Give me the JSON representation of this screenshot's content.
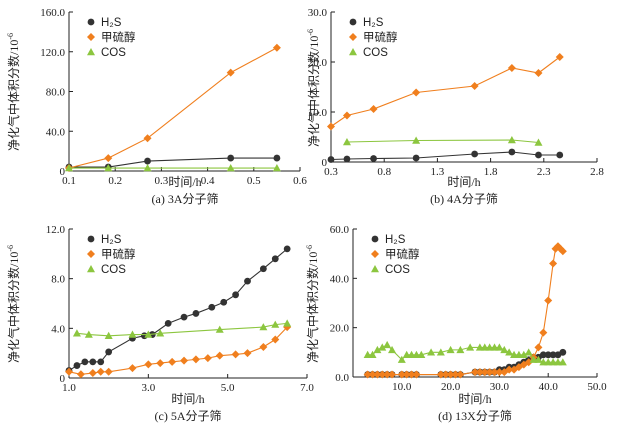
{
  "colors": {
    "h2s": "#333333",
    "mercaptan": "#f07f1e",
    "cos": "#8cc63f",
    "axis": "#222222"
  },
  "chart_data": [
    {
      "type": "line",
      "caption": "(a) 3A分子筛",
      "xlabel": "时间/h",
      "ylabel": "净化气中体积分数/10",
      "ylabel_exp": "-6",
      "xlim": [
        0.1,
        0.6
      ],
      "ylim": [
        0,
        160
      ],
      "xticks": [
        "0.1",
        "0.2",
        "0.3",
        "0.4",
        "0.5",
        "0.6"
      ],
      "yticks": [
        "0",
        "40.0",
        "80.0",
        "120.0",
        "160.0"
      ],
      "legend_position": "top-left",
      "series": [
        {
          "name": "H₂S",
          "marker": "circle",
          "x": [
            0.1,
            0.185,
            0.27,
            0.45,
            0.55
          ],
          "y": [
            4,
            4,
            10,
            13,
            13
          ]
        },
        {
          "name": "甲硫醇",
          "marker": "diamond",
          "x": [
            0.1,
            0.185,
            0.27,
            0.45,
            0.55
          ],
          "y": [
            3,
            13,
            33,
            99,
            124
          ]
        },
        {
          "name": "COS",
          "marker": "triangle",
          "x": [
            0.1,
            0.185,
            0.27,
            0.45,
            0.55
          ],
          "y": [
            3,
            3,
            3,
            3,
            3
          ]
        }
      ]
    },
    {
      "type": "line",
      "caption": "(b) 4A分子筛",
      "xlabel": "时间/h",
      "ylabel": "净化气中体积分数/10",
      "ylabel_exp": "-6",
      "xlim": [
        0.3,
        2.8
      ],
      "ylim": [
        0,
        30
      ],
      "xticks": [
        "0.3",
        "0.8",
        "1.3",
        "1.8",
        "2.3",
        "2.8"
      ],
      "yticks": [
        "0",
        "10.0",
        "20.0",
        "30.0"
      ],
      "legend_position": "top-left",
      "series": [
        {
          "name": "H₂S",
          "marker": "circle",
          "x": [
            0.3,
            0.45,
            0.7,
            1.1,
            1.65,
            2.0,
            2.25,
            2.45
          ],
          "y": [
            0.5,
            0.6,
            0.7,
            0.8,
            1.6,
            2.0,
            1.4,
            1.4
          ]
        },
        {
          "name": "甲硫醇",
          "marker": "diamond",
          "x": [
            0.3,
            0.45,
            0.7,
            1.1,
            1.65,
            2.0,
            2.25,
            2.45
          ],
          "y": [
            7.1,
            9.3,
            10.6,
            13.9,
            15.2,
            18.8,
            17.8,
            21.0
          ]
        },
        {
          "name": "COS",
          "marker": "triangle",
          "x": [
            0.45,
            1.1,
            2.0,
            2.25
          ],
          "y": [
            4.0,
            4.3,
            4.4,
            3.9
          ]
        }
      ]
    },
    {
      "type": "line",
      "caption": "(c) 5A分子筛",
      "xlabel": "时间/h",
      "ylabel": "净化气中体积分数/10",
      "ylabel_exp": "-6",
      "xlim": [
        1.0,
        7.0
      ],
      "ylim": [
        0,
        12
      ],
      "xticks": [
        "1.0",
        "3.0",
        "5.0",
        "7.0"
      ],
      "yticks": [
        "0",
        "4.0",
        "8.0",
        "12.0"
      ],
      "legend_position": "top-left",
      "series": [
        {
          "name": "H₂S",
          "marker": "circle",
          "x": [
            1.0,
            1.2,
            1.4,
            1.6,
            1.8,
            2.0,
            2.6,
            2.9,
            3.1,
            3.5,
            3.9,
            4.2,
            4.6,
            4.9,
            5.2,
            5.5,
            5.9,
            6.2,
            6.5
          ],
          "y": [
            0.6,
            1.0,
            1.3,
            1.3,
            1.3,
            2.1,
            3.2,
            3.4,
            3.5,
            4.4,
            4.9,
            5.2,
            5.7,
            6.1,
            6.7,
            7.8,
            8.8,
            9.6,
            10.4
          ]
        },
        {
          "name": "甲硫醇",
          "marker": "diamond",
          "x": [
            1.0,
            1.3,
            1.6,
            1.8,
            2.0,
            2.6,
            3.0,
            3.3,
            3.6,
            3.9,
            4.2,
            4.5,
            4.8,
            5.2,
            5.5,
            5.9,
            6.2,
            6.5
          ],
          "y": [
            0.5,
            0.3,
            0.4,
            0.5,
            0.5,
            0.8,
            1.1,
            1.2,
            1.3,
            1.4,
            1.5,
            1.6,
            1.8,
            1.9,
            2.0,
            2.5,
            3.1,
            4.1
          ]
        },
        {
          "name": "COS",
          "marker": "triangle",
          "x": [
            1.2,
            1.5,
            2.0,
            2.6,
            3.0,
            3.3,
            4.8,
            5.9,
            6.2,
            6.5
          ],
          "y": [
            3.6,
            3.5,
            3.4,
            3.5,
            3.5,
            3.6,
            3.9,
            4.1,
            4.3,
            4.4
          ]
        }
      ]
    },
    {
      "type": "line",
      "caption": "(d) 13X分子筛",
      "xlabel": "时间/h",
      "ylabel": "净化气中体积分数/10",
      "ylabel_exp": "-6",
      "xlim": [
        0,
        50
      ],
      "ylim": [
        0,
        60
      ],
      "xticks": [
        "10.0",
        "20.0",
        "30.0",
        "40.0",
        "50.0"
      ],
      "yticks": [
        "0.0",
        "20.0",
        "40.0",
        "60.0"
      ],
      "legend_position": "top-left",
      "series": [
        {
          "name": "H₂S",
          "marker": "circle",
          "x": [
            3,
            4,
            5,
            6,
            7,
            8,
            10,
            11,
            12,
            13,
            18,
            19,
            20,
            21,
            22,
            25,
            26,
            27,
            28,
            29,
            30,
            31,
            32,
            33,
            34,
            35,
            36,
            37,
            38,
            39,
            40,
            41,
            42,
            43
          ],
          "y": [
            1,
            1,
            1,
            1,
            1,
            1,
            1,
            1,
            1,
            1,
            1,
            1,
            1,
            1,
            1,
            2,
            2,
            2,
            2,
            2,
            3,
            3,
            4,
            4,
            5,
            6,
            7,
            8,
            8,
            9,
            9,
            9,
            9,
            10
          ]
        },
        {
          "name": "甲硫醇",
          "marker": "diamond",
          "x": [
            3,
            4,
            5,
            6,
            7,
            8,
            10,
            11,
            12,
            13,
            18,
            19,
            20,
            21,
            22,
            25,
            26,
            27,
            28,
            29,
            30,
            31,
            32,
            33,
            34,
            35,
            36,
            37,
            38,
            39,
            40,
            41,
            41.5,
            42,
            42.5,
            43
          ],
          "y": [
            1,
            1,
            1,
            1,
            1,
            1,
            1,
            1,
            1,
            1,
            1,
            1,
            1,
            1,
            1,
            2,
            2,
            2,
            2,
            2,
            2,
            2,
            3,
            3,
            4,
            5,
            6,
            8,
            12,
            18,
            31,
            46,
            52,
            53,
            52,
            51
          ]
        },
        {
          "name": "COS",
          "marker": "triangle",
          "x": [
            3,
            4,
            5,
            6,
            7,
            8,
            10,
            11,
            12,
            13,
            14,
            16,
            18,
            20,
            22,
            24,
            26,
            27,
            28,
            29,
            30,
            31,
            32,
            33,
            34,
            35,
            36,
            37,
            38,
            39,
            40,
            41,
            42,
            43
          ],
          "y": [
            9,
            9,
            11,
            12,
            13,
            11,
            7,
            9,
            9,
            9,
            9,
            10,
            10,
            11,
            11,
            12,
            12,
            12,
            12,
            12,
            12,
            11,
            10,
            9,
            9,
            9,
            10,
            7,
            7,
            6,
            6,
            6,
            6,
            6
          ]
        }
      ]
    }
  ]
}
